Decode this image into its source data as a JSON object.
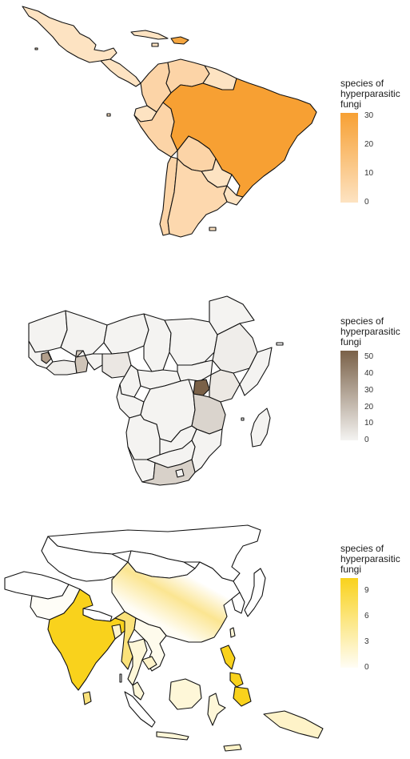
{
  "maps": [
    {
      "id": "latin-america",
      "legend": {
        "title_lines": [
          "species of",
          "hyperparasitic",
          "fungi"
        ],
        "ticks": [
          "30",
          "20",
          "10",
          "0"
        ],
        "tick_values": [
          30,
          20,
          10,
          0
        ],
        "range": [
          0,
          31
        ],
        "color_low": "#fde3c2",
        "color_high": "#f7a033"
      }
    },
    {
      "id": "africa",
      "legend": {
        "title_lines": [
          "species of",
          "hyperparasitic",
          "fungi"
        ],
        "ticks": [
          "50",
          "40",
          "30",
          "20",
          "10",
          "0"
        ],
        "tick_values": [
          50,
          40,
          30,
          20,
          10,
          0
        ],
        "range": [
          0,
          54
        ],
        "color_low": "#f4f3f1",
        "color_high": "#7a6148"
      }
    },
    {
      "id": "asia",
      "legend": {
        "title_lines": [
          "species of",
          "hyperparasitic",
          "fungi"
        ],
        "ticks": [
          "9",
          "6",
          "3",
          "0"
        ],
        "tick_values": [
          9,
          6,
          3,
          0
        ],
        "range": [
          0,
          10.5
        ],
        "color_low": "#fffdf5",
        "color_high": "#f9d21c"
      }
    }
  ]
}
